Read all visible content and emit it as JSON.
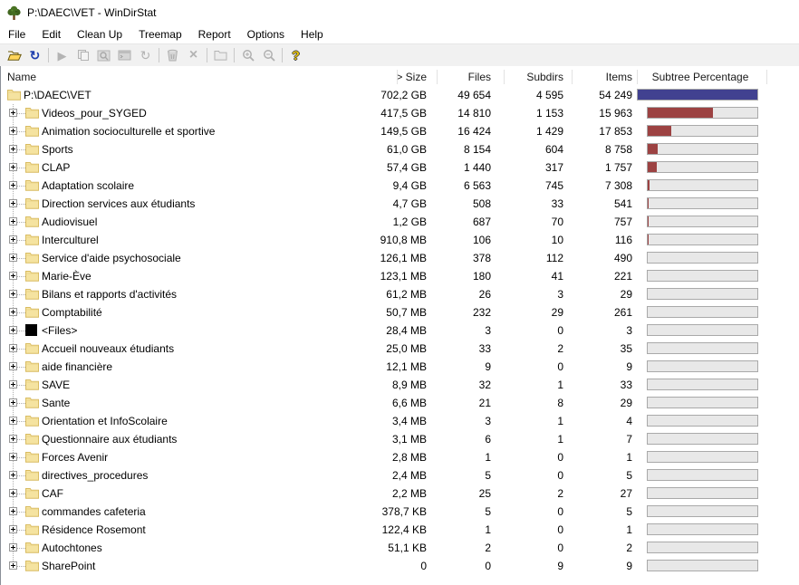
{
  "window": {
    "title": "P:\\DAEC\\VET - WinDirStat",
    "app_icon": "windirstat-tree-icon"
  },
  "menu": {
    "items": [
      "File",
      "Edit",
      "Clean Up",
      "Treemap",
      "Report",
      "Options",
      "Help"
    ]
  },
  "toolbar": {
    "buttons": [
      {
        "name": "open-file",
        "icon": "open-folder-icon",
        "enabled": true
      },
      {
        "name": "refresh-all",
        "icon": "refresh-arrows-icon",
        "enabled": true
      },
      {
        "name": "play",
        "icon": "play-icon",
        "enabled": false
      },
      {
        "name": "copy",
        "icon": "copy-icon",
        "enabled": false
      },
      {
        "name": "explorer-here",
        "icon": "explorer-icon",
        "enabled": false
      },
      {
        "name": "command-prompt-here",
        "icon": "command-prompt-icon",
        "enabled": false
      },
      {
        "name": "refresh-selected",
        "icon": "refresh-selected-icon",
        "enabled": false
      },
      {
        "name": "delete-to-recycle-bin",
        "icon": "recycle-bin-icon",
        "enabled": false
      },
      {
        "name": "delete",
        "icon": "x-delete-icon",
        "enabled": false
      },
      {
        "name": "user-defined-cleanup",
        "icon": "folder-outline-icon",
        "enabled": false
      },
      {
        "name": "zoom-in",
        "icon": "zoom-in-icon",
        "enabled": false
      },
      {
        "name": "zoom-out",
        "icon": "zoom-out-icon",
        "enabled": false
      },
      {
        "name": "help",
        "icon": "help-question-icon",
        "enabled": true
      }
    ]
  },
  "colors": {
    "bar_blue": "#414190",
    "bar_red": "#9C4242",
    "bar_track": "#E8E8E8",
    "folder_yellow": "#F5E3A0",
    "toolbar_bg": "#F1F1F1"
  },
  "table": {
    "columns": [
      {
        "label": "Name"
      },
      {
        "label": "> Size"
      },
      {
        "label": "Files"
      },
      {
        "label": "Subdirs"
      },
      {
        "label": "Items"
      },
      {
        "label": "Subtree Percentage"
      }
    ],
    "rows": [
      {
        "name": "P:\\DAEC\\VET",
        "size": "702,2 GB",
        "files": "49 654",
        "subdirs": "4 595",
        "items": "54 249",
        "percent": 100,
        "level": 0,
        "icon": "folder",
        "bar_color": "#414190"
      },
      {
        "name": "Videos_pour_SYGED",
        "size": "417,5 GB",
        "files": "14 810",
        "subdirs": "1 153",
        "items": "15 963",
        "percent": 59.5,
        "level": 1,
        "icon": "folder"
      },
      {
        "name": "Animation socioculturelle et sportive",
        "size": "149,5 GB",
        "files": "16 424",
        "subdirs": "1 429",
        "items": "17 853",
        "percent": 21.3,
        "level": 1,
        "icon": "folder"
      },
      {
        "name": "Sports",
        "size": "61,0 GB",
        "files": "8 154",
        "subdirs": "604",
        "items": "8 758",
        "percent": 8.7,
        "level": 1,
        "icon": "folder"
      },
      {
        "name": "CLAP",
        "size": "57,4 GB",
        "files": "1 440",
        "subdirs": "317",
        "items": "1 757",
        "percent": 8.2,
        "level": 1,
        "icon": "folder"
      },
      {
        "name": "Adaptation scolaire",
        "size": "9,4 GB",
        "files": "6 563",
        "subdirs": "745",
        "items": "7 308",
        "percent": 1.3,
        "level": 1,
        "icon": "folder"
      },
      {
        "name": "Direction services aux étudiants",
        "size": "4,7 GB",
        "files": "508",
        "subdirs": "33",
        "items": "541",
        "percent": 0.7,
        "level": 1,
        "icon": "folder"
      },
      {
        "name": "Audiovisuel",
        "size": "1,2 GB",
        "files": "687",
        "subdirs": "70",
        "items": "757",
        "percent": 0.2,
        "level": 1,
        "icon": "folder"
      },
      {
        "name": "Interculturel",
        "size": "910,8 MB",
        "files": "106",
        "subdirs": "10",
        "items": "116",
        "percent": 0.13,
        "level": 1,
        "icon": "folder"
      },
      {
        "name": "Service d'aide psychosociale",
        "size": "126,1 MB",
        "files": "378",
        "subdirs": "112",
        "items": "490",
        "percent": 0.02,
        "level": 1,
        "icon": "folder"
      },
      {
        "name": "Marie-Ève",
        "size": "123,1 MB",
        "files": "180",
        "subdirs": "41",
        "items": "221",
        "percent": 0.02,
        "level": 1,
        "icon": "folder"
      },
      {
        "name": "Bilans et rapports d'activités",
        "size": "61,2 MB",
        "files": "26",
        "subdirs": "3",
        "items": "29",
        "percent": 0.01,
        "level": 1,
        "icon": "folder"
      },
      {
        "name": "Comptabilité",
        "size": "50,7 MB",
        "files": "232",
        "subdirs": "29",
        "items": "261",
        "percent": 0.01,
        "level": 1,
        "icon": "folder"
      },
      {
        "name": "<Files>",
        "size": "28,4 MB",
        "files": "3",
        "subdirs": "0",
        "items": "3",
        "percent": 0,
        "level": 1,
        "icon": "files"
      },
      {
        "name": "Accueil nouveaux étudiants",
        "size": "25,0 MB",
        "files": "33",
        "subdirs": "2",
        "items": "35",
        "percent": 0,
        "level": 1,
        "icon": "folder"
      },
      {
        "name": "aide financière",
        "size": "12,1 MB",
        "files": "9",
        "subdirs": "0",
        "items": "9",
        "percent": 0,
        "level": 1,
        "icon": "folder"
      },
      {
        "name": "SAVE",
        "size": "8,9 MB",
        "files": "32",
        "subdirs": "1",
        "items": "33",
        "percent": 0,
        "level": 1,
        "icon": "folder"
      },
      {
        "name": "Sante",
        "size": "6,6 MB",
        "files": "21",
        "subdirs": "8",
        "items": "29",
        "percent": 0,
        "level": 1,
        "icon": "folder"
      },
      {
        "name": "Orientation et InfoScolaire",
        "size": "3,4 MB",
        "files": "3",
        "subdirs": "1",
        "items": "4",
        "percent": 0,
        "level": 1,
        "icon": "folder"
      },
      {
        "name": "Questionnaire aux étudiants",
        "size": "3,1 MB",
        "files": "6",
        "subdirs": "1",
        "items": "7",
        "percent": 0,
        "level": 1,
        "icon": "folder"
      },
      {
        "name": "Forces Avenir",
        "size": "2,8 MB",
        "files": "1",
        "subdirs": "0",
        "items": "1",
        "percent": 0,
        "level": 1,
        "icon": "folder"
      },
      {
        "name": "directives_procedures",
        "size": "2,4 MB",
        "files": "5",
        "subdirs": "0",
        "items": "5",
        "percent": 0,
        "level": 1,
        "icon": "folder"
      },
      {
        "name": "CAF",
        "size": "2,2 MB",
        "files": "25",
        "subdirs": "2",
        "items": "27",
        "percent": 0,
        "level": 1,
        "icon": "folder"
      },
      {
        "name": "commandes cafeteria",
        "size": "378,7 KB",
        "files": "5",
        "subdirs": "0",
        "items": "5",
        "percent": 0,
        "level": 1,
        "icon": "folder"
      },
      {
        "name": "Résidence Rosemont",
        "size": "122,4 KB",
        "files": "1",
        "subdirs": "0",
        "items": "1",
        "percent": 0,
        "level": 1,
        "icon": "folder"
      },
      {
        "name": "Autochtones",
        "size": "51,1 KB",
        "files": "2",
        "subdirs": "0",
        "items": "2",
        "percent": 0,
        "level": 1,
        "icon": "folder"
      },
      {
        "name": "SharePoint",
        "size": "0",
        "files": "0",
        "subdirs": "9",
        "items": "9",
        "percent": 0,
        "level": 1,
        "icon": "folder"
      }
    ]
  }
}
